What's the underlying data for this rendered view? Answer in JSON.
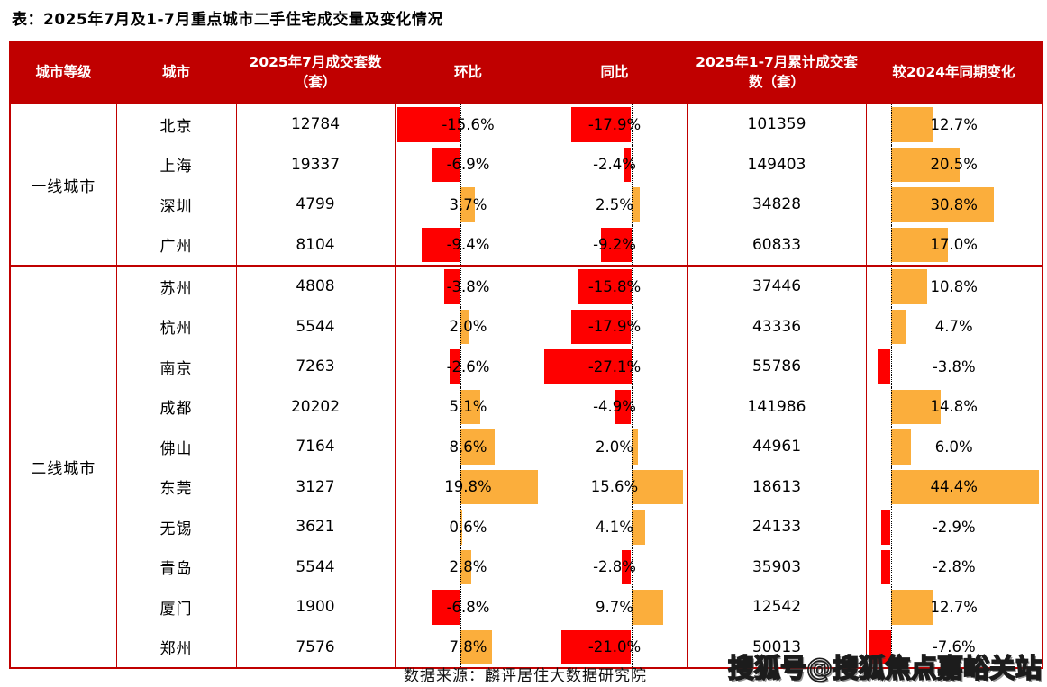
{
  "colors": {
    "header_bg": "#C00000",
    "border": "#C00000",
    "bar_negative": "#FE0000",
    "bar_positive": "#FBAE3C"
  },
  "source": "数据来源：麟评居住大数据研究院",
  "watermark": "搜狐号@搜狐焦点嘉峪关站",
  "chart_data": {
    "type": "table",
    "title": "表：2025年7月及1-7月重点城市二手住宅成交量及变化情况",
    "columns": [
      "城市等级",
      "城市",
      "2025年7月成交套数（套）",
      "环比",
      "同比",
      "2025年1-7月累计成交套数（套）",
      "较2024年同期变化"
    ],
    "bar_columns_note": "环比 / 同比 / 较2024年同期变化 cells are drawn as in-cell bars: red = negative, orange = positive, dotted line = 0",
    "groups": [
      {
        "tier": "一线城市",
        "rows": [
          {
            "city": "北京",
            "jul_sales": 12784,
            "mom_pct": -15.6,
            "yoy_pct": -17.9,
            "cum_sales": 101359,
            "cum_yoy_pct": 12.7
          },
          {
            "city": "上海",
            "jul_sales": 19337,
            "mom_pct": -6.9,
            "yoy_pct": -2.4,
            "cum_sales": 149403,
            "cum_yoy_pct": 20.5
          },
          {
            "city": "深圳",
            "jul_sales": 4799,
            "mom_pct": 3.7,
            "yoy_pct": 2.5,
            "cum_sales": 34828,
            "cum_yoy_pct": 30.8
          },
          {
            "city": "广州",
            "jul_sales": 8104,
            "mom_pct": -9.4,
            "yoy_pct": -9.2,
            "cum_sales": 60833,
            "cum_yoy_pct": 17.0
          }
        ]
      },
      {
        "tier": "二线城市",
        "rows": [
          {
            "city": "苏州",
            "jul_sales": 4808,
            "mom_pct": -3.8,
            "yoy_pct": -15.8,
            "cum_sales": 37446,
            "cum_yoy_pct": 10.8
          },
          {
            "city": "杭州",
            "jul_sales": 5544,
            "mom_pct": 2.0,
            "yoy_pct": -17.9,
            "cum_sales": 43336,
            "cum_yoy_pct": 4.7
          },
          {
            "city": "南京",
            "jul_sales": 7263,
            "mom_pct": -2.6,
            "yoy_pct": -27.1,
            "cum_sales": 55786,
            "cum_yoy_pct": -3.8
          },
          {
            "city": "成都",
            "jul_sales": 20202,
            "mom_pct": 5.1,
            "yoy_pct": -4.9,
            "cum_sales": 141986,
            "cum_yoy_pct": 14.8
          },
          {
            "city": "佛山",
            "jul_sales": 7164,
            "mom_pct": 8.6,
            "yoy_pct": 2.0,
            "cum_sales": 44961,
            "cum_yoy_pct": 6.0
          },
          {
            "city": "东莞",
            "jul_sales": 3127,
            "mom_pct": 19.8,
            "yoy_pct": 15.6,
            "cum_sales": 18613,
            "cum_yoy_pct": 44.4
          },
          {
            "city": "无锡",
            "jul_sales": 3621,
            "mom_pct": 0.6,
            "yoy_pct": 4.1,
            "cum_sales": 24133,
            "cum_yoy_pct": -2.9
          },
          {
            "city": "青岛",
            "jul_sales": 5544,
            "mom_pct": 2.8,
            "yoy_pct": -2.8,
            "cum_sales": 35903,
            "cum_yoy_pct": -2.8
          },
          {
            "city": "厦门",
            "jul_sales": 1900,
            "mom_pct": -6.8,
            "yoy_pct": 9.7,
            "cum_sales": 12542,
            "cum_yoy_pct": 12.7
          },
          {
            "city": "郑州",
            "jul_sales": 7576,
            "mom_pct": 7.8,
            "yoy_pct": -21.0,
            "cum_sales": 50013,
            "cum_yoy_pct": -7.6
          }
        ]
      }
    ]
  }
}
